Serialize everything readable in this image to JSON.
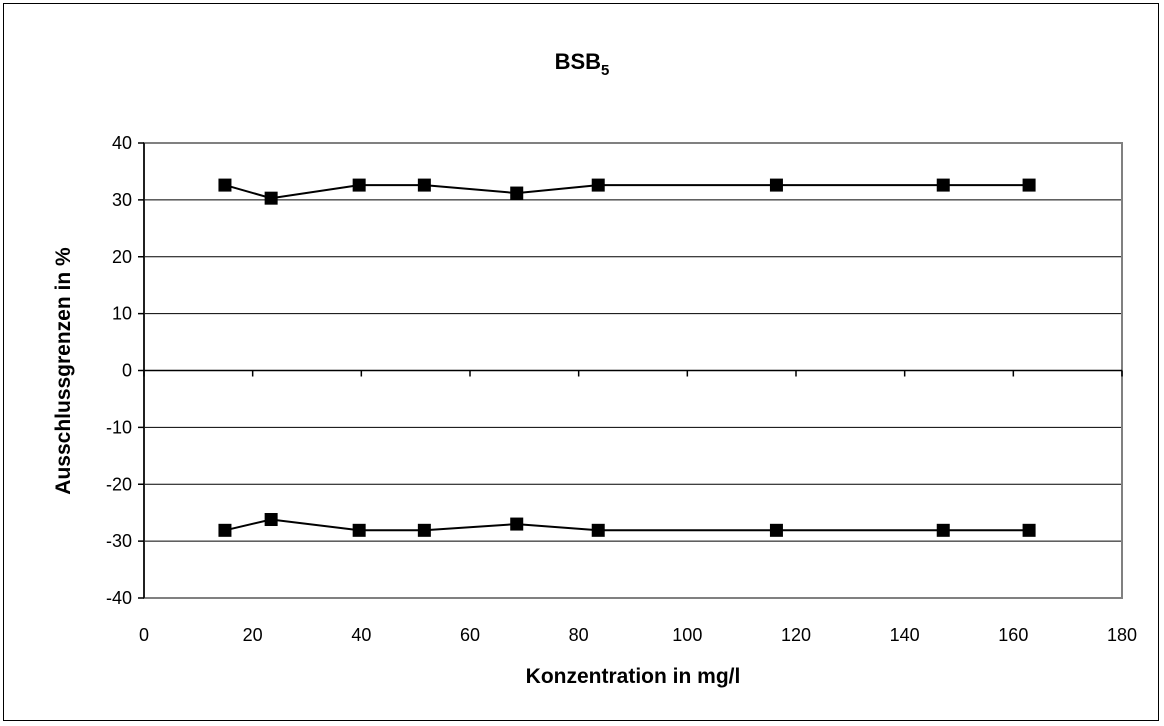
{
  "chart_data": {
    "type": "line",
    "title": "BSB",
    "title_subscript": "5",
    "xlabel": "Konzentration in mg/l",
    "ylabel": "Ausschlussgrenzen in %",
    "xlim": [
      0,
      180
    ],
    "ylim": [
      -40,
      40
    ],
    "x_ticks": [
      "0",
      "20",
      "40",
      "60",
      "80",
      "100",
      "120",
      "140",
      "160",
      "180"
    ],
    "y_ticks": [
      "40",
      "30",
      "20",
      "10",
      "0",
      "-10",
      "-20",
      "-30",
      "-40"
    ],
    "grid": "horizontal",
    "plot_background": "#ffffff",
    "plot_border_color": "#808080",
    "series": [
      {
        "color": "#000000",
        "marker": "square",
        "x": [
          14.9,
          23.4,
          39.6,
          51.6,
          68.6,
          83.6,
          116.4,
          147.1,
          162.9
        ],
        "y": [
          32.6,
          30.3,
          32.6,
          32.6,
          31.2,
          32.6,
          32.6,
          32.6,
          32.6
        ]
      },
      {
        "color": "#000000",
        "marker": "square",
        "x": [
          14.9,
          23.4,
          39.6,
          51.6,
          68.6,
          83.6,
          116.4,
          147.1,
          162.9
        ],
        "y": [
          -28.1,
          -26.2,
          -28.1,
          -28.1,
          -27.0,
          -28.1,
          -28.1,
          -28.1,
          -28.1
        ]
      }
    ]
  }
}
